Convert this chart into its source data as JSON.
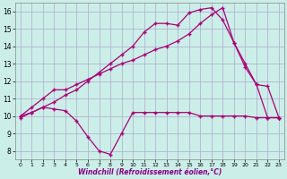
{
  "xlabel": "Windchill (Refroidissement éolien,°C)",
  "background_color": "#cceee8",
  "grid_color": "#aaaacc",
  "line_color": "#aa0077",
  "x_ticks": [
    0,
    1,
    2,
    3,
    4,
    5,
    6,
    7,
    8,
    9,
    10,
    11,
    12,
    13,
    14,
    15,
    16,
    17,
    18,
    19,
    20,
    21,
    22,
    23
  ],
  "y_ticks": [
    8,
    9,
    10,
    11,
    12,
    13,
    14,
    15,
    16
  ],
  "ylim": [
    7.5,
    16.5
  ],
  "xlim": [
    -0.5,
    23.5
  ],
  "series1_x": [
    0,
    1,
    2,
    3,
    4,
    5,
    6,
    7,
    8,
    9,
    10,
    11,
    12,
    13,
    14,
    15,
    16,
    17,
    18,
    19,
    20,
    21,
    22,
    23
  ],
  "series1_y": [
    9.9,
    10.2,
    10.5,
    10.4,
    10.3,
    9.7,
    8.8,
    8.0,
    7.8,
    9.0,
    10.2,
    10.2,
    10.2,
    10.2,
    10.2,
    10.2,
    10.0,
    10.0,
    10.0,
    10.0,
    10.0,
    9.9,
    9.9,
    9.9
  ],
  "series2_x": [
    0,
    1,
    2,
    3,
    4,
    5,
    6,
    7,
    8,
    9,
    10,
    11,
    12,
    13,
    14,
    15,
    16,
    17,
    18,
    19,
    20,
    21,
    22,
    23
  ],
  "series2_y": [
    10.0,
    10.5,
    11.0,
    11.5,
    11.5,
    11.8,
    12.1,
    12.4,
    12.7,
    13.0,
    13.2,
    13.5,
    13.8,
    14.0,
    14.3,
    14.7,
    15.3,
    15.8,
    16.2,
    14.2,
    12.8,
    11.8,
    11.7,
    9.9
  ],
  "series3_x": [
    0,
    1,
    2,
    3,
    4,
    5,
    6,
    7,
    8,
    9,
    10,
    11,
    12,
    13,
    14,
    15,
    16,
    17,
    18,
    19,
    20,
    21,
    22,
    23
  ],
  "series3_y": [
    10.0,
    10.2,
    10.5,
    10.8,
    11.2,
    11.5,
    12.0,
    12.5,
    13.0,
    13.5,
    14.0,
    14.8,
    15.3,
    15.3,
    15.2,
    15.9,
    16.1,
    16.2,
    15.5,
    14.2,
    13.0,
    11.8,
    9.9,
    9.9
  ]
}
